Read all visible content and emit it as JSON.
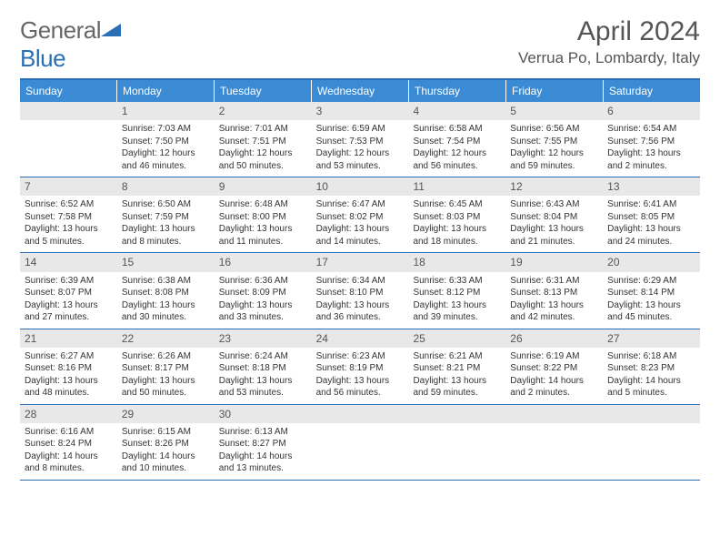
{
  "logo": {
    "part1": "General",
    "part2": "Blue"
  },
  "title": "April 2024",
  "location": "Verrua Po, Lombardy, Italy",
  "colors": {
    "header_bg": "#3b8bd4",
    "border": "#2a6fb5",
    "daynum_bg": "#e8e8e8",
    "text": "#333333",
    "muted": "#555555"
  },
  "weekdays": [
    "Sunday",
    "Monday",
    "Tuesday",
    "Wednesday",
    "Thursday",
    "Friday",
    "Saturday"
  ],
  "weeks": [
    [
      {
        "n": "",
        "sr": "",
        "ss": "",
        "dl": ""
      },
      {
        "n": "1",
        "sr": "Sunrise: 7:03 AM",
        "ss": "Sunset: 7:50 PM",
        "dl": "Daylight: 12 hours and 46 minutes."
      },
      {
        "n": "2",
        "sr": "Sunrise: 7:01 AM",
        "ss": "Sunset: 7:51 PM",
        "dl": "Daylight: 12 hours and 50 minutes."
      },
      {
        "n": "3",
        "sr": "Sunrise: 6:59 AM",
        "ss": "Sunset: 7:53 PM",
        "dl": "Daylight: 12 hours and 53 minutes."
      },
      {
        "n": "4",
        "sr": "Sunrise: 6:58 AM",
        "ss": "Sunset: 7:54 PM",
        "dl": "Daylight: 12 hours and 56 minutes."
      },
      {
        "n": "5",
        "sr": "Sunrise: 6:56 AM",
        "ss": "Sunset: 7:55 PM",
        "dl": "Daylight: 12 hours and 59 minutes."
      },
      {
        "n": "6",
        "sr": "Sunrise: 6:54 AM",
        "ss": "Sunset: 7:56 PM",
        "dl": "Daylight: 13 hours and 2 minutes."
      }
    ],
    [
      {
        "n": "7",
        "sr": "Sunrise: 6:52 AM",
        "ss": "Sunset: 7:58 PM",
        "dl": "Daylight: 13 hours and 5 minutes."
      },
      {
        "n": "8",
        "sr": "Sunrise: 6:50 AM",
        "ss": "Sunset: 7:59 PM",
        "dl": "Daylight: 13 hours and 8 minutes."
      },
      {
        "n": "9",
        "sr": "Sunrise: 6:48 AM",
        "ss": "Sunset: 8:00 PM",
        "dl": "Daylight: 13 hours and 11 minutes."
      },
      {
        "n": "10",
        "sr": "Sunrise: 6:47 AM",
        "ss": "Sunset: 8:02 PM",
        "dl": "Daylight: 13 hours and 14 minutes."
      },
      {
        "n": "11",
        "sr": "Sunrise: 6:45 AM",
        "ss": "Sunset: 8:03 PM",
        "dl": "Daylight: 13 hours and 18 minutes."
      },
      {
        "n": "12",
        "sr": "Sunrise: 6:43 AM",
        "ss": "Sunset: 8:04 PM",
        "dl": "Daylight: 13 hours and 21 minutes."
      },
      {
        "n": "13",
        "sr": "Sunrise: 6:41 AM",
        "ss": "Sunset: 8:05 PM",
        "dl": "Daylight: 13 hours and 24 minutes."
      }
    ],
    [
      {
        "n": "14",
        "sr": "Sunrise: 6:39 AM",
        "ss": "Sunset: 8:07 PM",
        "dl": "Daylight: 13 hours and 27 minutes."
      },
      {
        "n": "15",
        "sr": "Sunrise: 6:38 AM",
        "ss": "Sunset: 8:08 PM",
        "dl": "Daylight: 13 hours and 30 minutes."
      },
      {
        "n": "16",
        "sr": "Sunrise: 6:36 AM",
        "ss": "Sunset: 8:09 PM",
        "dl": "Daylight: 13 hours and 33 minutes."
      },
      {
        "n": "17",
        "sr": "Sunrise: 6:34 AM",
        "ss": "Sunset: 8:10 PM",
        "dl": "Daylight: 13 hours and 36 minutes."
      },
      {
        "n": "18",
        "sr": "Sunrise: 6:33 AM",
        "ss": "Sunset: 8:12 PM",
        "dl": "Daylight: 13 hours and 39 minutes."
      },
      {
        "n": "19",
        "sr": "Sunrise: 6:31 AM",
        "ss": "Sunset: 8:13 PM",
        "dl": "Daylight: 13 hours and 42 minutes."
      },
      {
        "n": "20",
        "sr": "Sunrise: 6:29 AM",
        "ss": "Sunset: 8:14 PM",
        "dl": "Daylight: 13 hours and 45 minutes."
      }
    ],
    [
      {
        "n": "21",
        "sr": "Sunrise: 6:27 AM",
        "ss": "Sunset: 8:16 PM",
        "dl": "Daylight: 13 hours and 48 minutes."
      },
      {
        "n": "22",
        "sr": "Sunrise: 6:26 AM",
        "ss": "Sunset: 8:17 PM",
        "dl": "Daylight: 13 hours and 50 minutes."
      },
      {
        "n": "23",
        "sr": "Sunrise: 6:24 AM",
        "ss": "Sunset: 8:18 PM",
        "dl": "Daylight: 13 hours and 53 minutes."
      },
      {
        "n": "24",
        "sr": "Sunrise: 6:23 AM",
        "ss": "Sunset: 8:19 PM",
        "dl": "Daylight: 13 hours and 56 minutes."
      },
      {
        "n": "25",
        "sr": "Sunrise: 6:21 AM",
        "ss": "Sunset: 8:21 PM",
        "dl": "Daylight: 13 hours and 59 minutes."
      },
      {
        "n": "26",
        "sr": "Sunrise: 6:19 AM",
        "ss": "Sunset: 8:22 PM",
        "dl": "Daylight: 14 hours and 2 minutes."
      },
      {
        "n": "27",
        "sr": "Sunrise: 6:18 AM",
        "ss": "Sunset: 8:23 PM",
        "dl": "Daylight: 14 hours and 5 minutes."
      }
    ],
    [
      {
        "n": "28",
        "sr": "Sunrise: 6:16 AM",
        "ss": "Sunset: 8:24 PM",
        "dl": "Daylight: 14 hours and 8 minutes."
      },
      {
        "n": "29",
        "sr": "Sunrise: 6:15 AM",
        "ss": "Sunset: 8:26 PM",
        "dl": "Daylight: 14 hours and 10 minutes."
      },
      {
        "n": "30",
        "sr": "Sunrise: 6:13 AM",
        "ss": "Sunset: 8:27 PM",
        "dl": "Daylight: 14 hours and 13 minutes."
      },
      {
        "n": "",
        "sr": "",
        "ss": "",
        "dl": ""
      },
      {
        "n": "",
        "sr": "",
        "ss": "",
        "dl": ""
      },
      {
        "n": "",
        "sr": "",
        "ss": "",
        "dl": ""
      },
      {
        "n": "",
        "sr": "",
        "ss": "",
        "dl": ""
      }
    ]
  ]
}
